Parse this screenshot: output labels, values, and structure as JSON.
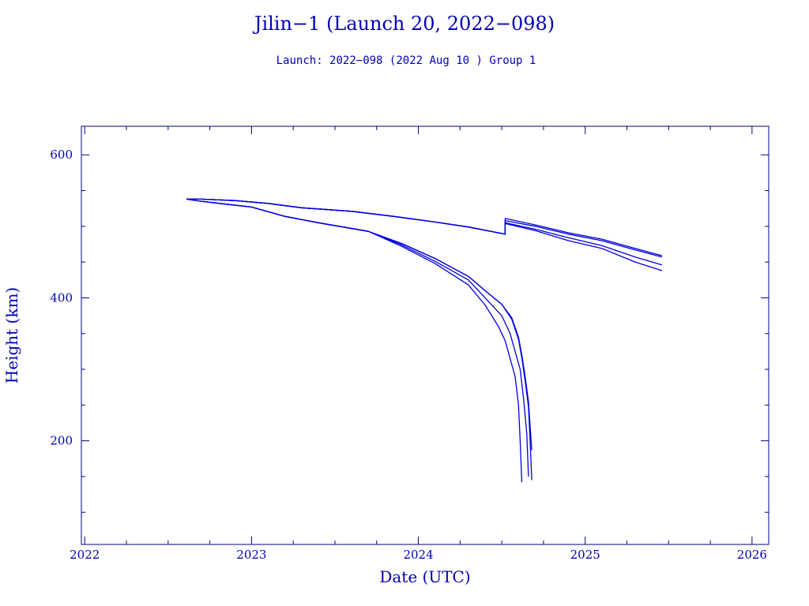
{
  "chart_data": {
    "type": "line",
    "title": "Jilin−1 (Launch 20, 2022−098)",
    "subtitle": "Launch: 2022−098  (2022 Aug 10 )  Group 1",
    "xlabel": "Date (UTC)",
    "ylabel": "Height (km)",
    "xlim": [
      2021.98,
      2026.1
    ],
    "ylim": [
      55,
      640
    ],
    "x_ticks": [
      2022,
      2023,
      2024,
      2025,
      2026
    ],
    "x_tick_labels": [
      "2022",
      "2023",
      "2024",
      "2025",
      "2026"
    ],
    "y_ticks": [
      200,
      400,
      600
    ],
    "y_tick_labels": [
      "200",
      "400",
      "600"
    ],
    "grid": false,
    "colors": {
      "axis": "#000080",
      "series": "#0000dc",
      "text": "#0000b4"
    },
    "series": [
      {
        "x": [
          2022.61,
          2022.7,
          2022.9,
          2023.1,
          2023.3,
          2023.6,
          2023.85,
          2024.1,
          2024.3,
          2024.5,
          2024.52,
          2024.52,
          2024.7,
          2024.9,
          2025.1,
          2025.3,
          2025.46
        ],
        "y": [
          538,
          538,
          536,
          532,
          526,
          521,
          514,
          506,
          499,
          490,
          489,
          508,
          500,
          489,
          480,
          467,
          457
        ]
      },
      {
        "x": [
          2022.61,
          2022.7,
          2022.9,
          2023.1,
          2023.3,
          2023.6,
          2023.85,
          2024.1,
          2024.3,
          2024.5,
          2024.52,
          2024.52,
          2024.7,
          2024.9,
          2025.1,
          2025.3,
          2025.46
        ],
        "y": [
          538,
          538,
          536,
          532,
          526,
          521,
          514,
          506,
          499,
          490,
          489,
          511,
          502,
          491,
          482,
          469,
          459
        ]
      },
      {
        "x": [
          2022.61,
          2022.7,
          2022.9,
          2023.1,
          2023.3,
          2023.6,
          2023.85,
          2024.1,
          2024.3,
          2024.5,
          2024.52,
          2024.52,
          2024.7,
          2024.9,
          2025.1,
          2025.3,
          2025.46
        ],
        "y": [
          538,
          538,
          536,
          532,
          526,
          521,
          514,
          506,
          499,
          490,
          489,
          505,
          496,
          484,
          473,
          457,
          446
        ]
      },
      {
        "x": [
          2022.61,
          2022.7,
          2022.9,
          2023.1,
          2023.3,
          2023.6,
          2023.85,
          2024.1,
          2024.3,
          2024.5,
          2024.52,
          2024.52,
          2024.7,
          2024.9,
          2025.1,
          2025.3,
          2025.46
        ],
        "y": [
          538,
          538,
          536,
          532,
          526,
          521,
          514,
          506,
          499,
          490,
          489,
          504,
          494,
          480,
          469,
          450,
          438
        ]
      },
      {
        "x": [
          2022.61,
          2022.7,
          2022.85,
          2023.0,
          2023.2,
          2023.4,
          2023.7,
          2023.9,
          2024.1,
          2024.3,
          2024.4,
          2024.5,
          2024.56,
          2024.6,
          2024.62,
          2024.64,
          2024.66,
          2024.67,
          2024.68
        ],
        "y": [
          538,
          535,
          531,
          527,
          514,
          505,
          493,
          476,
          455,
          430,
          410,
          391,
          372,
          345,
          320,
          290,
          255,
          220,
          187
        ]
      },
      {
        "x": [
          2022.61,
          2022.7,
          2022.85,
          2023.0,
          2023.2,
          2023.4,
          2023.7,
          2023.9,
          2024.1,
          2024.3,
          2024.4,
          2024.5,
          2024.56,
          2024.6,
          2024.62,
          2024.64,
          2024.66,
          2024.67,
          2024.68
        ],
        "y": [
          538,
          535,
          531,
          527,
          514,
          505,
          493,
          476,
          455,
          430,
          410,
          391,
          370,
          342,
          316,
          284,
          248,
          200,
          145
        ]
      },
      {
        "x": [
          2022.61,
          2022.7,
          2022.85,
          2023.0,
          2023.2,
          2023.4,
          2023.7,
          2023.9,
          2024.1,
          2024.3,
          2024.4,
          2024.5,
          2024.55,
          2024.58,
          2024.61,
          2024.63,
          2024.65,
          2024.66
        ],
        "y": [
          538,
          535,
          531,
          527,
          514,
          505,
          493,
          474,
          451,
          425,
          400,
          375,
          350,
          325,
          300,
          260,
          210,
          150
        ]
      },
      {
        "x": [
          2022.61,
          2022.7,
          2022.85,
          2023.0,
          2023.2,
          2023.4,
          2023.7,
          2023.9,
          2024.1,
          2024.3,
          2024.4,
          2024.48,
          2024.52,
          2024.55,
          2024.58,
          2024.6,
          2024.61,
          2024.62
        ],
        "y": [
          538,
          535,
          531,
          527,
          514,
          505,
          493,
          472,
          448,
          418,
          390,
          360,
          340,
          315,
          290,
          250,
          200,
          142
        ]
      }
    ]
  }
}
